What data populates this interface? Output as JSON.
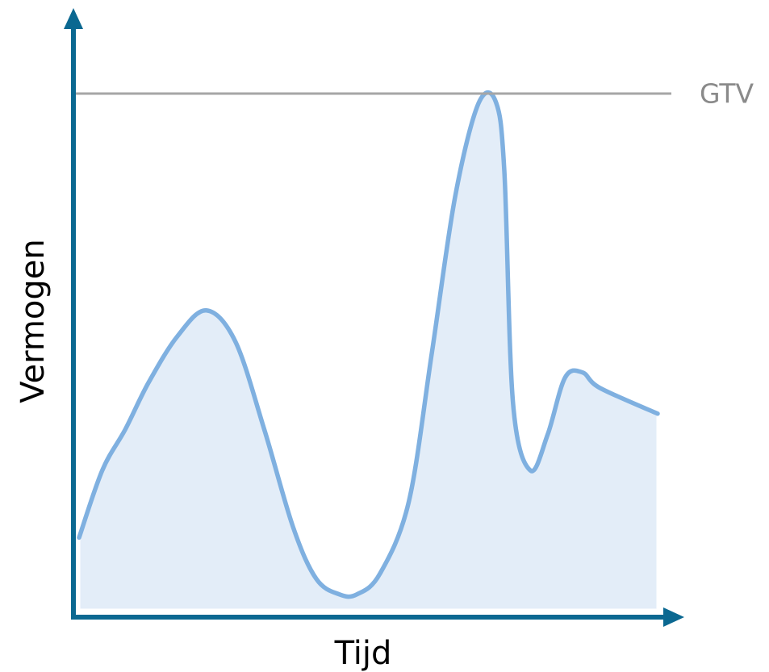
{
  "chart_data": {
    "type": "area",
    "title": "",
    "xlabel": "Tijd",
    "ylabel": "Vermogen",
    "reference_line": {
      "label": "GTV",
      "value": 100
    },
    "xlim": [
      0,
      100
    ],
    "ylim": [
      0,
      115
    ],
    "grid": false,
    "legend": "none",
    "series": [
      {
        "x": [
          0,
          4,
          8,
          12,
          17,
          22,
          27,
          32,
          37,
          41,
          45,
          48,
          52,
          57,
          61,
          65,
          69,
          72,
          73.5,
          75,
          78,
          81,
          84,
          87,
          90,
          100
        ],
        "y": [
          14,
          27,
          35,
          44,
          53,
          58,
          52,
          35,
          16,
          6,
          3,
          3,
          7,
          21,
          50,
          80,
          98,
          98.5,
          85,
          40,
          27,
          34,
          45,
          46,
          43,
          38
        ]
      }
    ],
    "colors": {
      "axes": "#0b6891",
      "line": "#7fb0e0",
      "fill": "#e3edf8",
      "reference": "#a6a6a6",
      "reference_label": "#8a8a8a"
    }
  }
}
